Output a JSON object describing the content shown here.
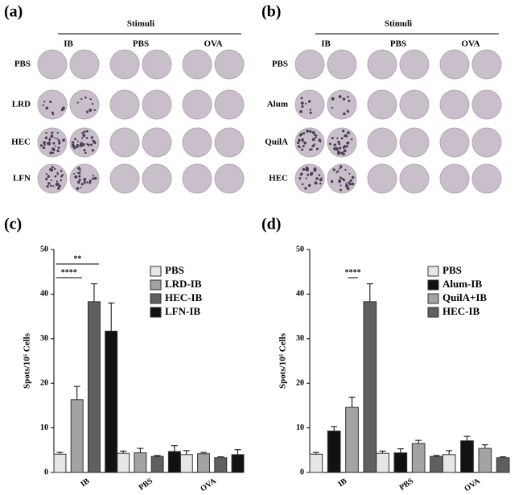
{
  "panels": [
    {
      "label": "(a)",
      "header": "Stimuli",
      "columns": [
        "IB",
        "PBS",
        "OVA"
      ],
      "rows": [
        "PBS",
        "LRD",
        "HEC",
        "LFN"
      ]
    },
    {
      "label": "(b)",
      "header": "Stimuli",
      "columns": [
        "IB",
        "PBS",
        "OVA"
      ],
      "rows": [
        "PBS",
        "Alum",
        "QuilA",
        "HEC"
      ]
    }
  ],
  "chart_data": [
    {
      "type": "bar",
      "panel_label": "(c)",
      "y_label": "Spots/10⁵ Cells",
      "categories": [
        "IB",
        "PBS",
        "OVA"
      ],
      "series": [
        {
          "name": "PBS",
          "color": "#e6e6e6",
          "values": [
            4.1,
            4.3,
            4.0
          ],
          "errors": [
            0.4,
            0.5,
            0.9
          ]
        },
        {
          "name": "LRD-IB",
          "color": "#a3a3a3",
          "values": [
            16.3,
            4.4,
            4.2
          ],
          "errors": [
            3.0,
            1.0,
            0.3
          ]
        },
        {
          "name": "HEC-IB",
          "color": "#5f5f5f",
          "values": [
            38.3,
            3.6,
            3.3
          ],
          "errors": [
            4.0,
            0.2,
            0.2
          ]
        },
        {
          "name": "LFN-IB",
          "color": "#111111",
          "values": [
            31.7,
            4.7,
            4.0
          ],
          "errors": [
            6.3,
            1.3,
            1.1
          ]
        }
      ],
      "ylim": [
        0,
        50
      ],
      "yticks": [
        0,
        10,
        20,
        30,
        40,
        50
      ],
      "annotations": [
        "****",
        "**"
      ]
    },
    {
      "type": "bar",
      "panel_label": "(d)",
      "y_label": "Spots/10⁵ Cells",
      "categories": [
        "IB",
        "PBS",
        "OVA"
      ],
      "series": [
        {
          "name": "PBS",
          "color": "#e6e6e6",
          "values": [
            4.1,
            4.3,
            4.0
          ],
          "errors": [
            0.4,
            0.5,
            0.9
          ]
        },
        {
          "name": "Alum-IB",
          "color": "#111111",
          "values": [
            9.3,
            4.4,
            7.1
          ],
          "errors": [
            1.0,
            0.9,
            1.0
          ]
        },
        {
          "name": "QuilA+IB",
          "color": "#a3a3a3",
          "values": [
            14.6,
            6.5,
            5.4
          ],
          "errors": [
            2.3,
            0.7,
            0.8
          ]
        },
        {
          "name": "HEC-IB",
          "color": "#5f5f5f",
          "values": [
            38.3,
            3.6,
            3.3
          ],
          "errors": [
            4.0,
            0.2,
            0.2
          ]
        }
      ],
      "ylim": [
        0,
        50
      ],
      "yticks": [
        0,
        10,
        20,
        30,
        40,
        50
      ],
      "annotations": [
        "****"
      ]
    }
  ]
}
